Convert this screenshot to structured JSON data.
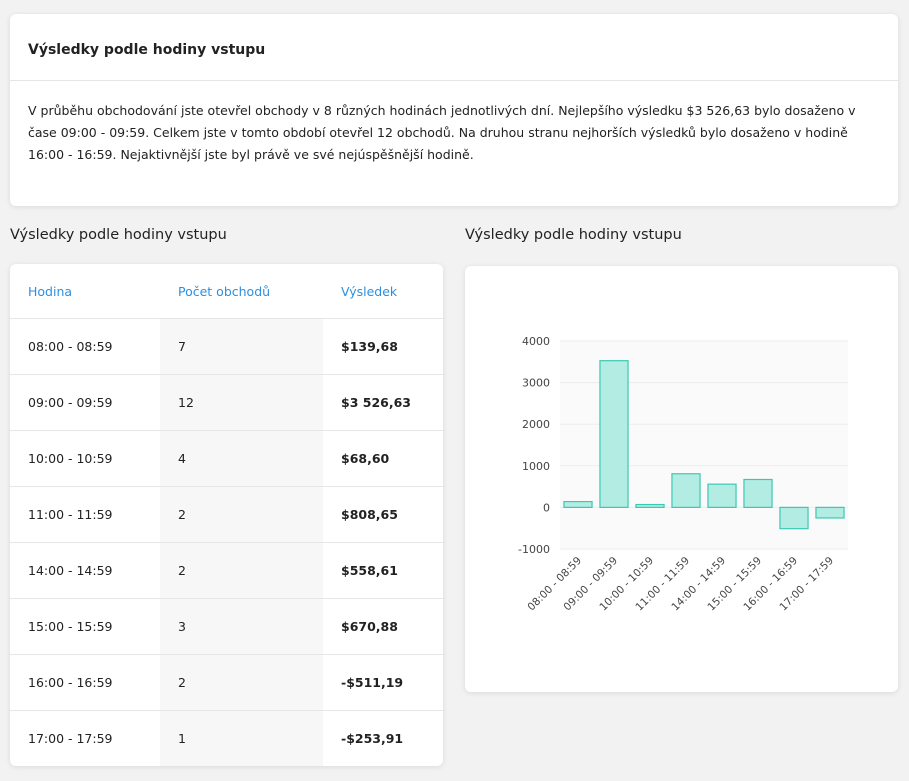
{
  "summary": {
    "title": "Výsledky podle hodiny vstupu",
    "text": "V průběhu obchodování jste otevřel obchody v 8 různých hodinách jednotlivých dní. Nejlepšího výsledku $3 526,63 bylo dosaženo v čase 09:00 - 09:59. Celkem jste v tomto období otevřel 12 obchodů. Na druhou stranu nejhorších výsledků bylo dosaženo v hodině 16:00 - 16:59. Nejaktivnější jste byl právě ve své nejúspěšnější hodině."
  },
  "table": {
    "heading": "Výsledky podle hodiny vstupu",
    "headers": {
      "hour": "Hodina",
      "count": "Počet obchodů",
      "result": "Výsledek"
    },
    "rows": [
      {
        "hour": "08:00 - 08:59",
        "count": "7",
        "result": "$139,68",
        "sign": "pos"
      },
      {
        "hour": "09:00 - 09:59",
        "count": "12",
        "result": "$3 526,63",
        "sign": "pos"
      },
      {
        "hour": "10:00 - 10:59",
        "count": "4",
        "result": "$68,60",
        "sign": "pos"
      },
      {
        "hour": "11:00 - 11:59",
        "count": "2",
        "result": "$808,65",
        "sign": "pos"
      },
      {
        "hour": "14:00 - 14:59",
        "count": "2",
        "result": "$558,61",
        "sign": "pos"
      },
      {
        "hour": "15:00 - 15:59",
        "count": "3",
        "result": "$670,88",
        "sign": "pos"
      },
      {
        "hour": "16:00 - 16:59",
        "count": "2",
        "result": "-$511,19",
        "sign": "neg"
      },
      {
        "hour": "17:00 - 17:59",
        "count": "1",
        "result": "-$253,91",
        "sign": "neg"
      }
    ]
  },
  "chart": {
    "heading": "Výsledky podle hodiny vstupu"
  },
  "chart_data": {
    "type": "bar",
    "categories": [
      "08:00 - 08:59",
      "09:00 - 09:59",
      "10:00 - 10:59",
      "11:00 - 11:59",
      "14:00 - 14:59",
      "15:00 - 15:59",
      "16:00 - 16:59",
      "17:00 - 17:59"
    ],
    "values": [
      139.68,
      3526.63,
      68.6,
      808.65,
      558.61,
      670.88,
      -511.19,
      -253.91
    ],
    "yticks": [
      4000,
      3000,
      2000,
      1000,
      0,
      -1000
    ],
    "ylim": [
      -1000,
      4000
    ],
    "grid": true,
    "bar_fill": "#b3ece3",
    "bar_stroke": "#3cc9b3"
  },
  "colors": {
    "header_blue": "#2d8fe0",
    "positive": "#1cc5a8",
    "negative": "#f0506e"
  }
}
